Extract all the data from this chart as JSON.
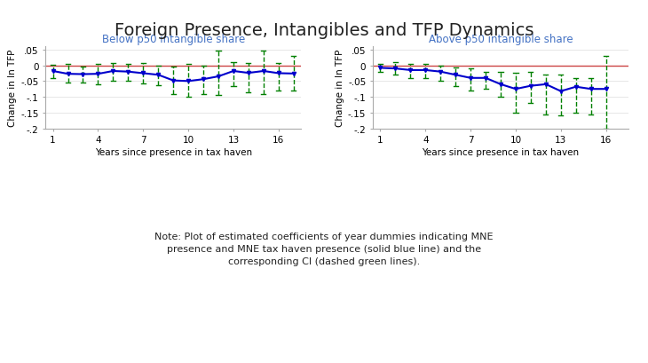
{
  "title": "Foreign Presence, Intangibles and TFP Dynamics",
  "title_fontsize": 14,
  "subtitle_left": "Below p50 intangible share",
  "subtitle_right": "Above p50 intangible share",
  "xlabel": "Years since presence in tax haven",
  "ylabel": "Change in ln TFP",
  "note": "Note: Plot of estimated coefficients of year dummies indicating MNE\npresence and MNE tax haven presence (solid blue line) and the\ncorresponding CI (dashed green lines).",
  "xlim": [
    0.5,
    17.5
  ],
  "ylim": [
    -0.2,
    0.06
  ],
  "yticks": [
    0.05,
    0,
    -0.05,
    -0.1,
    -0.15,
    -0.2
  ],
  "yticklabels": [
    ".05",
    "0",
    "-.05",
    "-.1",
    "-.15",
    "-.2"
  ],
  "xticks": [
    1,
    4,
    7,
    10,
    13,
    16
  ],
  "panel1": {
    "x": [
      1,
      2,
      3,
      4,
      5,
      6,
      7,
      8,
      9,
      10,
      11,
      12,
      13,
      14,
      15,
      16,
      17
    ],
    "y": [
      -0.018,
      -0.027,
      -0.028,
      -0.027,
      -0.018,
      -0.02,
      -0.025,
      -0.03,
      -0.048,
      -0.05,
      -0.044,
      -0.035,
      -0.018,
      -0.024,
      -0.018,
      -0.025,
      -0.026
    ],
    "ci_upper": [
      0.002,
      0.005,
      -0.005,
      0.005,
      0.008,
      0.005,
      0.008,
      0.0,
      -0.005,
      0.005,
      0.0,
      0.048,
      0.01,
      0.008,
      0.048,
      0.008,
      0.03
    ],
    "ci_lower": [
      -0.04,
      -0.055,
      -0.055,
      -0.06,
      -0.05,
      -0.05,
      -0.058,
      -0.062,
      -0.09,
      -0.1,
      -0.09,
      -0.095,
      -0.065,
      -0.085,
      -0.09,
      -0.08,
      -0.08
    ]
  },
  "panel2": {
    "x": [
      1,
      2,
      3,
      4,
      5,
      6,
      7,
      8,
      9,
      10,
      11,
      12,
      13,
      14,
      15,
      16
    ],
    "y": [
      -0.008,
      -0.01,
      -0.015,
      -0.015,
      -0.02,
      -0.03,
      -0.04,
      -0.04,
      -0.06,
      -0.075,
      -0.065,
      -0.06,
      -0.082,
      -0.068,
      -0.075,
      -0.075
    ],
    "ci_upper": [
      0.005,
      0.01,
      0.005,
      0.005,
      0.0,
      -0.008,
      -0.01,
      -0.02,
      -0.02,
      -0.025,
      -0.02,
      -0.03,
      -0.03,
      -0.04,
      -0.04,
      0.03
    ],
    "ci_lower": [
      -0.02,
      -0.03,
      -0.04,
      -0.04,
      -0.05,
      -0.065,
      -0.08,
      -0.075,
      -0.1,
      -0.15,
      -0.12,
      -0.155,
      -0.16,
      -0.15,
      -0.155,
      -0.2
    ]
  },
  "line_color": "#0000CC",
  "ci_color": "#008000",
  "hline_color": "#CC4444",
  "subtitle_color": "#4472C4",
  "background_color": "#ffffff"
}
